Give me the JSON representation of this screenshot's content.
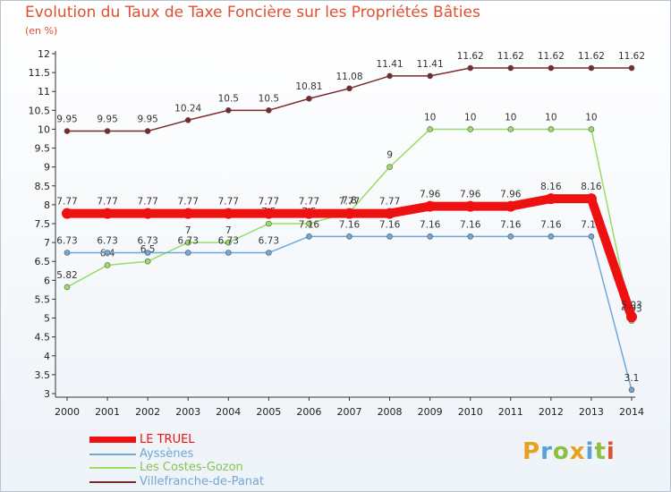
{
  "brand": "Proxiti",
  "chart_data": {
    "type": "line",
    "title": "Evolution du Taux de Taxe Foncière sur les Propriétés Bâties",
    "subtitle": "(en %)",
    "xlabel": "",
    "ylabel": "",
    "ylim": [
      3,
      12
    ],
    "y_ticks": [
      3,
      3.5,
      4,
      4.5,
      5,
      5.5,
      6,
      6.5,
      7,
      7.5,
      8,
      8.5,
      9,
      9.5,
      10,
      10.5,
      11,
      11.5,
      12
    ],
    "y_tick_labels": [
      "3",
      "3.5",
      "4",
      "4.5",
      "5",
      "5.5",
      "6",
      "6.5",
      "7",
      "7.5",
      "8",
      "8.5",
      "9",
      "9.5",
      "10",
      "10.5",
      "11",
      "11.5",
      "12"
    ],
    "grid": false,
    "legend_position": "bottom-left",
    "categories": [
      "2000",
      "2001",
      "2002",
      "2003",
      "2004",
      "2005",
      "2006",
      "2007",
      "2008",
      "2009",
      "2010",
      "2011",
      "2012",
      "2013",
      "2014"
    ],
    "series": [
      {
        "name": "Villefranche-de-Panat",
        "color": "#7a2a2a",
        "values": [
          9.95,
          9.95,
          9.95,
          10.24,
          10.5,
          10.5,
          10.81,
          11.08,
          11.41,
          11.41,
          11.62,
          11.62,
          11.62,
          11.62,
          11.62
        ],
        "labels": [
          "9.95",
          "9.95",
          "9.95",
          "10.24",
          "10.5",
          "10.5",
          "10.81",
          "11.08",
          "11.41",
          "11.41",
          "11.62",
          "11.62",
          "11.62",
          "11.62",
          "11.62"
        ]
      },
      {
        "name": "Les Costes-Gozon",
        "color": "#99dd66",
        "values": [
          5.82,
          6.4,
          6.5,
          7,
          7,
          7.5,
          7.5,
          7.8,
          9,
          10,
          10,
          10,
          10,
          10,
          4.93
        ],
        "labels": [
          "5.82",
          "6.4",
          "6.5",
          "7",
          "7",
          "7.5",
          "7.5",
          "7.8",
          "9",
          "10",
          "10",
          "10",
          "10",
          "10",
          "4.93"
        ]
      },
      {
        "name": "Ayssènes",
        "color": "#6fa8d8",
        "values": [
          6.73,
          6.73,
          6.73,
          6.73,
          6.73,
          6.73,
          7.16,
          7.16,
          7.16,
          7.16,
          7.16,
          7.16,
          7.16,
          7.16,
          3.1
        ],
        "labels": [
          "6.73",
          "6.73",
          "6.73",
          "6.73",
          "6.73",
          "6.73",
          "7.16",
          "7.16",
          "7.16",
          "7.16",
          "7.16",
          "7.16",
          "7.16",
          "7.16",
          "3.1"
        ]
      },
      {
        "name": "LE TRUEL",
        "color": "#ee1111",
        "values": [
          7.77,
          7.77,
          7.77,
          7.77,
          7.77,
          7.77,
          7.77,
          7.77,
          7.77,
          7.96,
          7.96,
          7.96,
          8.16,
          8.16,
          5.03
        ],
        "labels": [
          "7.77",
          "7.77",
          "7.77",
          "7.77",
          "7.77",
          "7.77",
          "7.77",
          "7.77",
          "7.77",
          "7.96",
          "7.96",
          "7.96",
          "8.16",
          "8.16",
          "5.03"
        ]
      }
    ],
    "legend": [
      "LE TRUEL",
      "Ayssènes",
      "Les Costes-Gozon",
      "Villefranche-de-Panat"
    ]
  }
}
